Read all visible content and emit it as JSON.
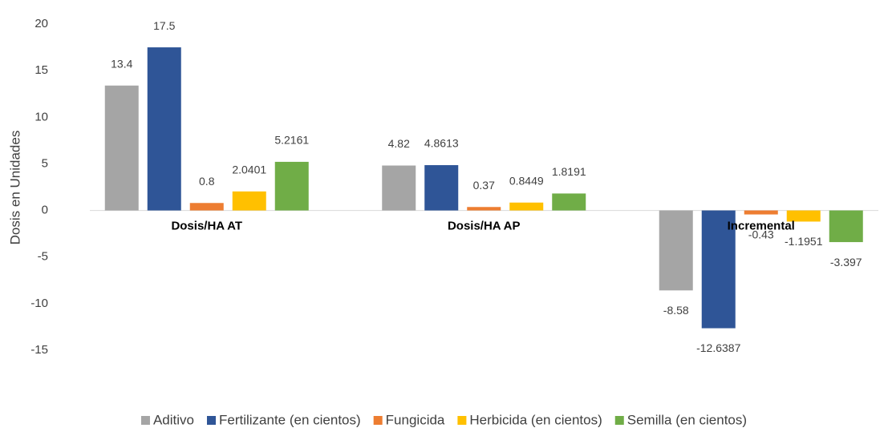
{
  "chart_data": {
    "type": "bar",
    "y_label": "Dosis en Unidades",
    "categories": [
      "Dosis/HA AT",
      "Dosis/HA AP",
      "Incremental"
    ],
    "series": [
      {
        "name": "Aditivo",
        "color": "#a5a5a5",
        "values": [
          13.4,
          4.82,
          -8.58
        ]
      },
      {
        "name": "Fertilizante (en cientos)",
        "color": "#2f5597",
        "values": [
          17.5,
          4.8613,
          -12.6387
        ]
      },
      {
        "name": "Fungicida",
        "color": "#ed7d31",
        "values": [
          0.8,
          0.37,
          -0.43
        ]
      },
      {
        "name": "Herbicida (en cientos)",
        "color": "#ffc000",
        "values": [
          2.0401,
          0.8449,
          -1.1951
        ]
      },
      {
        "name": "Semilla (en cientos)",
        "color": "#70ad47",
        "values": [
          5.2161,
          1.8191,
          -3.397
        ]
      }
    ],
    "ylim": [
      -15,
      20
    ],
    "yticks": [
      -15,
      -10,
      -5,
      0,
      5,
      10,
      15,
      20
    ],
    "legend": "bottom"
  }
}
